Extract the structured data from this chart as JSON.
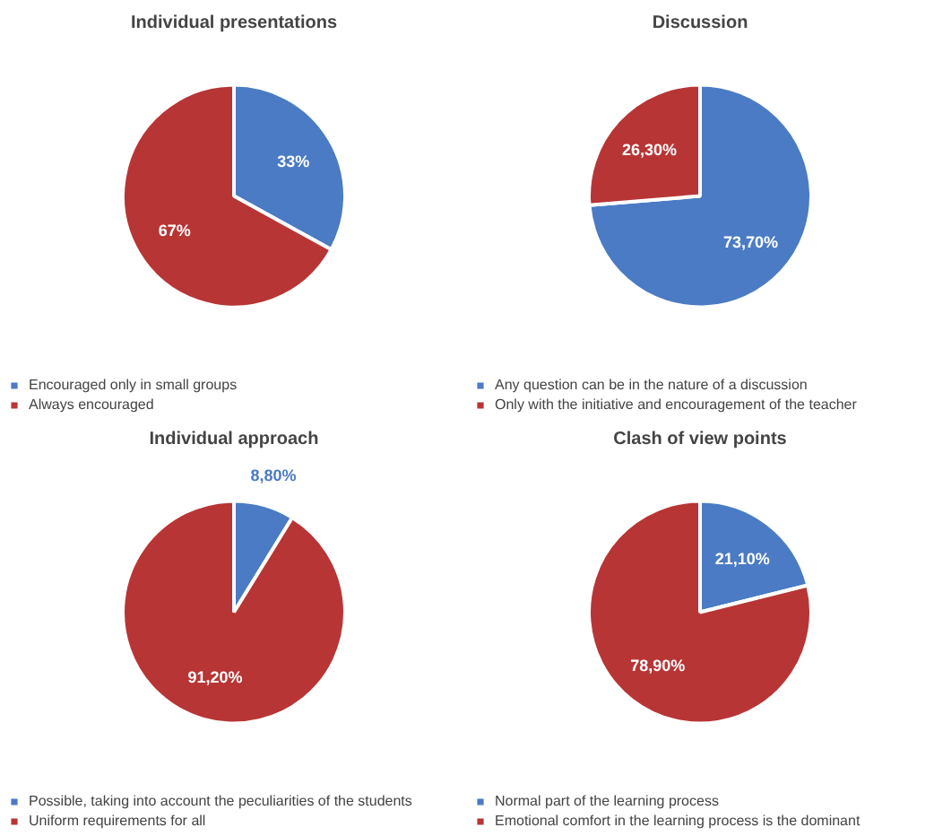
{
  "chart_data": [
    {
      "type": "pie",
      "title": "Individual presentations",
      "categories": [
        "Encouraged only in small groups",
        "Always encouraged"
      ],
      "values": [
        33,
        67
      ],
      "value_labels": [
        "33%",
        "67%"
      ],
      "colors": [
        "#4a7bc4",
        "#b83535"
      ],
      "legend": "bottom"
    },
    {
      "type": "pie",
      "title": "Discussion",
      "categories": [
        "Any question can be in the nature of a discussion",
        "Only with the initiative and encouragement of the teacher"
      ],
      "values": [
        73.7,
        26.3
      ],
      "value_labels": [
        "73,70%",
        "26,30%"
      ],
      "colors": [
        "#4a7bc4",
        "#b83535"
      ],
      "legend": "bottom"
    },
    {
      "type": "pie",
      "title": "Individual approach",
      "categories": [
        "Possible, taking into account the peculiarities of the students",
        "Uniform requirements for all"
      ],
      "values": [
        8.8,
        91.2
      ],
      "value_labels": [
        "8,80%",
        "91,20%"
      ],
      "colors": [
        "#4a7bc4",
        "#b83535"
      ],
      "legend": "bottom"
    },
    {
      "type": "pie",
      "title": "Clash of view points",
      "categories": [
        "Normal part of the learning process",
        "Emotional comfort in the learning process is the dominant"
      ],
      "values": [
        21.1,
        78.9
      ],
      "value_labels": [
        "21,10%",
        "78,90%"
      ],
      "colors": [
        "#4a7bc4",
        "#b83535"
      ],
      "legend": "bottom"
    }
  ]
}
